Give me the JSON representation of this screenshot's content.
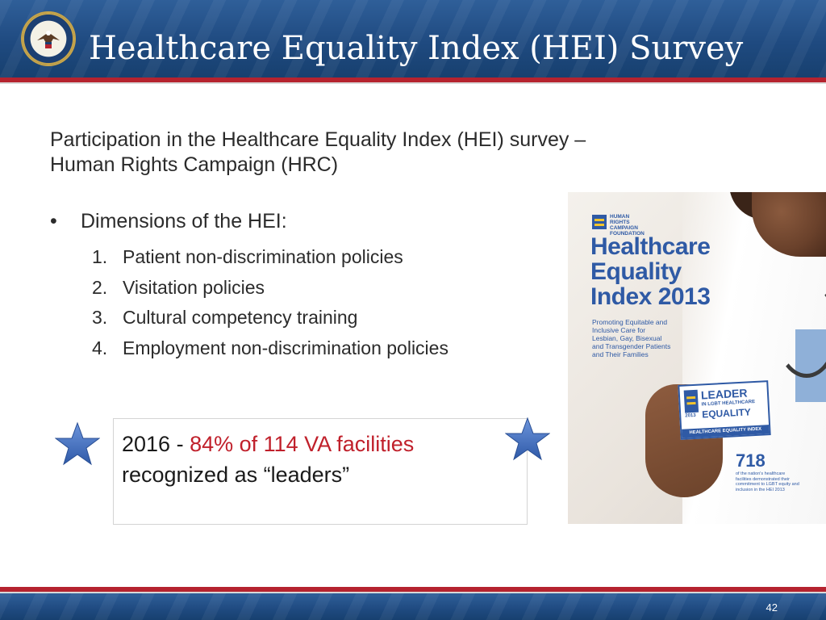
{
  "slide": {
    "title": "Healthcare Equality Index (HEI) Survey",
    "intro_line1": "Participation in the Healthcare Equality Index (HEI) survey –",
    "intro_line2": "Human Rights Campaign (HRC)",
    "bullet_symbol": "•",
    "bullet_label": "Dimensions of the HEI:",
    "dimensions": [
      {
        "num": "1.",
        "text": "Patient non-discrimination policies"
      },
      {
        "num": "2.",
        "text": "Visitation policies"
      },
      {
        "num": "3.",
        "text": "Cultural competency training"
      },
      {
        "num": "4.",
        "text": "Employment non-discrimination policies"
      }
    ],
    "callout": {
      "year": "2016 - ",
      "highlight": "84% of 114 VA facilities",
      "line2": "recognized as “leaders”"
    },
    "page_number": "42"
  },
  "report_image": {
    "org_label": "HUMAN RIGHTS CAMPAIGN FOUNDATION",
    "title_lines": [
      "Healthcare",
      "Equality",
      "Index 2013"
    ],
    "subtitle": "Promoting Equitable and Inclusive Care for Lesbian, Gay, Bisexual and Transgender Patients and Their Families",
    "card_top": "LEADER",
    "card_mid": "IN LGBT HEALTHCARE",
    "card_main": "EQUALITY",
    "card_bottom": "HEALTHCARE EQUALITY INDEX",
    "card_year": "2013",
    "stat_number": "718",
    "stat_caption": "of the nation's healthcare facilities demonstrated their commitment to LGBT equity and inclusion in the HEI 2013"
  },
  "colors": {
    "header_blue": "#1f4a80",
    "accent_red": "#b5232f",
    "highlight_red": "#c0202b",
    "star_blue": "#3d6cc4",
    "hei_blue": "#2f5aa5"
  }
}
